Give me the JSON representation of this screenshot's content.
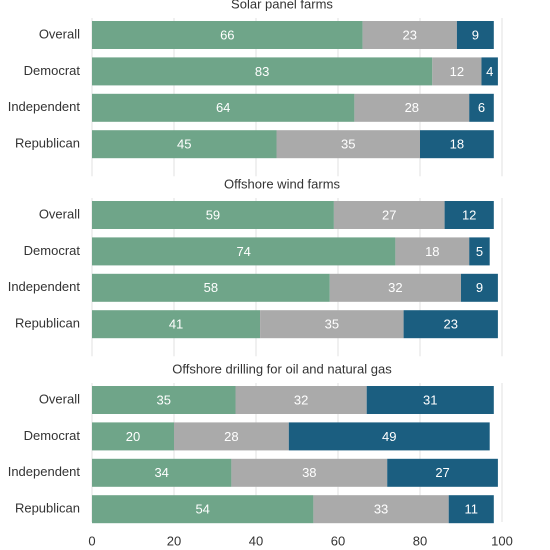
{
  "chart_data": [
    {
      "type": "stacked-bar",
      "title": "Solar panel farms",
      "categories": [
        "Overall",
        "Democrat",
        "Independent",
        "Republican"
      ],
      "series": [
        {
          "color": "#6fa589",
          "values": [
            66,
            83,
            64,
            45
          ]
        },
        {
          "color": "#aaaaaa",
          "values": [
            23,
            12,
            28,
            35
          ]
        },
        {
          "color": "#1b5e80",
          "values": [
            9,
            4,
            6,
            18
          ]
        }
      ],
      "xlim": [
        0,
        100
      ],
      "xticks": [
        0,
        20,
        40,
        60,
        80,
        100
      ],
      "grid": true
    },
    {
      "type": "stacked-bar",
      "title": "Offshore wind farms",
      "categories": [
        "Overall",
        "Democrat",
        "Independent",
        "Republican"
      ],
      "series": [
        {
          "color": "#6fa589",
          "values": [
            59,
            74,
            58,
            41
          ]
        },
        {
          "color": "#aaaaaa",
          "values": [
            27,
            18,
            32,
            35
          ]
        },
        {
          "color": "#1b5e80",
          "values": [
            12,
            5,
            9,
            23
          ]
        }
      ],
      "xlim": [
        0,
        100
      ],
      "xticks": [
        0,
        20,
        40,
        60,
        80,
        100
      ],
      "grid": true
    },
    {
      "type": "stacked-bar",
      "title": "Offshore drilling for oil and natural gas",
      "categories": [
        "Overall",
        "Democrat",
        "Independent",
        "Republican"
      ],
      "series": [
        {
          "color": "#6fa589",
          "values": [
            35,
            20,
            34,
            54
          ]
        },
        {
          "color": "#aaaaaa",
          "values": [
            32,
            28,
            38,
            33
          ]
        },
        {
          "color": "#1b5e80",
          "values": [
            31,
            49,
            27,
            11
          ]
        }
      ],
      "xlim": [
        0,
        100
      ],
      "xticks": [
        0,
        20,
        40,
        60,
        80,
        100
      ],
      "grid": true
    }
  ]
}
